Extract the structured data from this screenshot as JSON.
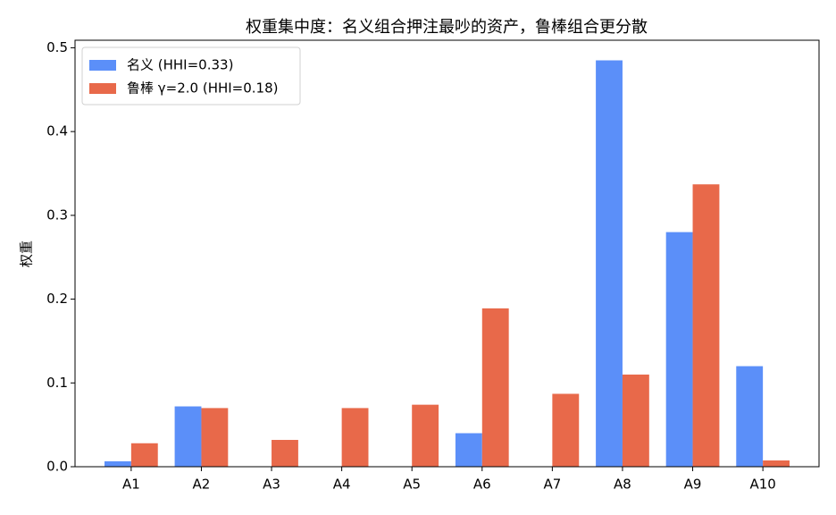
{
  "chart_data": {
    "type": "bar",
    "title": "权重集中度：名义组合押注最吵的资产，鲁棒组合更分散",
    "y_label": "权重",
    "categories": [
      "A1",
      "A2",
      "A3",
      "A4",
      "A5",
      "A6",
      "A7",
      "A8",
      "A9",
      "A10"
    ],
    "series": [
      {
        "name": "名义 (HHI=0.33)",
        "color": "#5b8ff9",
        "values": [
          0.0065,
          0.072,
          0,
          0,
          0,
          0.04,
          0,
          0.485,
          0.28,
          0.12
        ]
      },
      {
        "name": "鲁棒 γ=2.0 (HHI=0.18)",
        "color": "#e8694a",
        "values": [
          0.028,
          0.07,
          0.032,
          0.07,
          0.074,
          0.189,
          0.087,
          0.11,
          0.337,
          0.0075
        ]
      }
    ],
    "ylim": [
      0,
      0.509
    ],
    "yticks": [
      {
        "value": 0,
        "label": "0.0"
      },
      0.1,
      0.2,
      0.3,
      0.4,
      0.5
    ],
    "legend": "upper-left"
  }
}
